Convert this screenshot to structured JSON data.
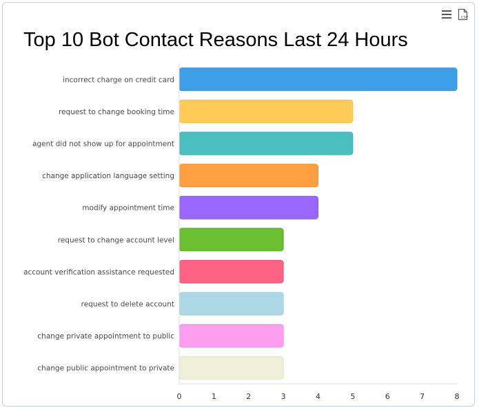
{
  "toolbar": {
    "menu_icon": "hamburger-menu-icon",
    "csv_icon": "csv-download-icon",
    "csv_label": "CSV"
  },
  "chart_data": {
    "type": "bar",
    "orientation": "horizontal",
    "title": "Top 10 Bot Contact Reasons Last 24 Hours",
    "xlabel": "",
    "ylabel": "",
    "xlim": [
      0,
      8
    ],
    "x_ticks": [
      "0",
      "1",
      "2",
      "3",
      "4",
      "5",
      "6",
      "7",
      "8"
    ],
    "grid": false,
    "categories": [
      "incorrect charge on credit card",
      "request to change booking time",
      "agent did not show up for appointment",
      "change application language setting",
      "modify appointment time",
      "request to change account level",
      "account verification assistance requested",
      "request to delete account",
      "change private appointment to public",
      "change public appointment to private"
    ],
    "values": [
      8,
      5,
      5,
      4,
      4,
      3,
      3,
      3,
      3,
      3
    ],
    "colors": [
      "#3d9fe8",
      "#ffcb57",
      "#4bbfbf",
      "#ff9f40",
      "#9966ff",
      "#6cbf30",
      "#ff6384",
      "#acd8e6",
      "#fd9ef1",
      "#f0f0d8"
    ],
    "border_colors": [
      "#2f8fd8",
      "#f5bd45",
      "#3fb0b0",
      "#f59030",
      "#8855f0",
      "#5eae25",
      "#f05575",
      "#9fcbd9",
      "#f08fe3",
      "#e3e3c8"
    ]
  }
}
